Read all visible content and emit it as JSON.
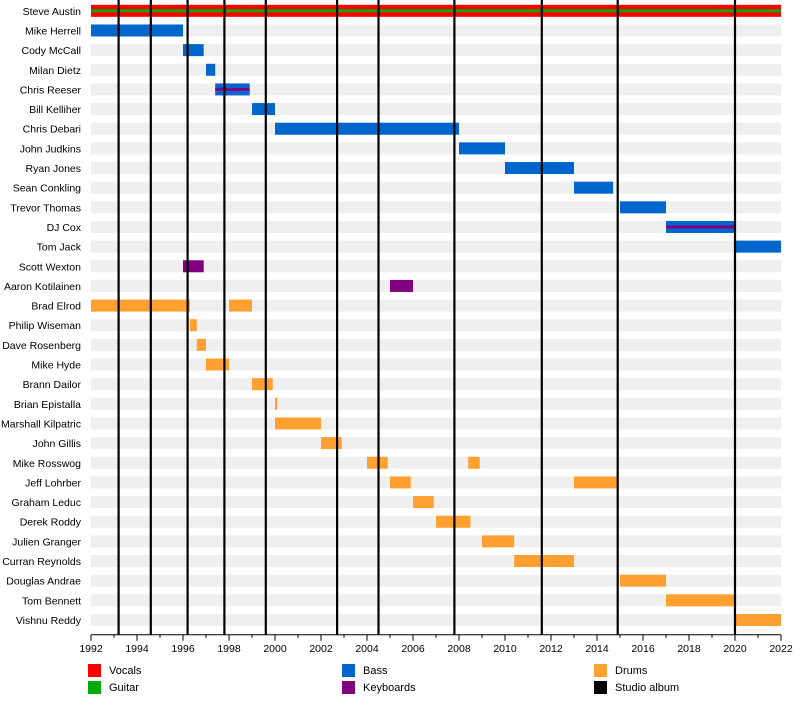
{
  "chart_data": {
    "type": "timeline",
    "x_range": [
      1992,
      2022
    ],
    "x_ticks": [
      1992,
      1994,
      1996,
      1998,
      2000,
      2002,
      2004,
      2006,
      2008,
      2010,
      2012,
      2014,
      2016,
      2018,
      2020,
      2022
    ],
    "x_tick_labels": [
      "1992",
      "1994",
      "1996",
      "1998",
      "2000",
      "2002",
      "2004",
      "2006",
      "2008",
      "2010",
      "2012",
      "2014",
      "2016",
      "2018",
      "2020",
      "2022"
    ],
    "studio_albums": [
      1993.2,
      1994.6,
      1996.2,
      1997.8,
      1999.6,
      2002.7,
      2004.5,
      2007.8,
      2011.6,
      2014.9,
      2020.0
    ],
    "colors": {
      "vocals": "#ff0000",
      "guitar": "#00aa00",
      "bass": "#0066cc",
      "keyboards": "#800080",
      "drums": "#ffa030",
      "studio_album": "#000000"
    },
    "members": [
      {
        "name": "Steve Austin",
        "bars": [
          {
            "start": 1992.0,
            "end": 2022.0,
            "role": "vocals",
            "secondary": "guitar"
          }
        ]
      },
      {
        "name": "Mike Herrell",
        "bars": [
          {
            "start": 1992.0,
            "end": 1996.0,
            "role": "bass"
          }
        ]
      },
      {
        "name": "Cody McCall",
        "bars": [
          {
            "start": 1996.0,
            "end": 1996.9,
            "role": "bass"
          }
        ]
      },
      {
        "name": "Milan Dietz",
        "bars": [
          {
            "start": 1997.0,
            "end": 1997.4,
            "role": "bass"
          }
        ]
      },
      {
        "name": "Chris Reeser",
        "bars": [
          {
            "start": 1997.4,
            "end": 1998.9,
            "role": "bass",
            "secondary": "keyboards"
          }
        ]
      },
      {
        "name": "Bill Kelliher",
        "bars": [
          {
            "start": 1999.0,
            "end": 2000.0,
            "role": "bass"
          }
        ]
      },
      {
        "name": "Chris Debari",
        "bars": [
          {
            "start": 2000.0,
            "end": 2008.0,
            "role": "bass"
          }
        ]
      },
      {
        "name": "John Judkins",
        "bars": [
          {
            "start": 2008.0,
            "end": 2010.0,
            "role": "bass"
          }
        ]
      },
      {
        "name": "Ryan Jones",
        "bars": [
          {
            "start": 2010.0,
            "end": 2013.0,
            "role": "bass"
          }
        ]
      },
      {
        "name": "Sean Conkling",
        "bars": [
          {
            "start": 2013.0,
            "end": 2014.7,
            "role": "bass"
          }
        ]
      },
      {
        "name": "Trevor Thomas",
        "bars": [
          {
            "start": 2015.0,
            "end": 2017.0,
            "role": "bass"
          }
        ]
      },
      {
        "name": "DJ Cox",
        "bars": [
          {
            "start": 2017.0,
            "end": 2020.0,
            "role": "bass",
            "secondary": "keyboards"
          }
        ]
      },
      {
        "name": "Tom Jack",
        "bars": [
          {
            "start": 2020.0,
            "end": 2022.0,
            "role": "bass"
          }
        ]
      },
      {
        "name": "Scott Wexton",
        "bars": [
          {
            "start": 1996.0,
            "end": 1996.9,
            "role": "keyboards"
          }
        ]
      },
      {
        "name": "Aaron Kotilainen",
        "bars": [
          {
            "start": 2005.0,
            "end": 2006.0,
            "role": "keyboards"
          }
        ]
      },
      {
        "name": "Brad Elrod",
        "bars": [
          {
            "start": 1992.0,
            "end": 1996.3,
            "role": "drums"
          },
          {
            "start": 1998.0,
            "end": 1999.0,
            "role": "drums"
          }
        ]
      },
      {
        "name": "Philip Wiseman",
        "bars": [
          {
            "start": 1996.3,
            "end": 1996.6,
            "role": "drums"
          }
        ]
      },
      {
        "name": "Dave Rosenberg",
        "bars": [
          {
            "start": 1996.6,
            "end": 1997.0,
            "role": "drums"
          }
        ]
      },
      {
        "name": "Mike Hyde",
        "bars": [
          {
            "start": 1997.0,
            "end": 1998.0,
            "role": "drums"
          }
        ]
      },
      {
        "name": "Brann Dailor",
        "bars": [
          {
            "start": 1999.0,
            "end": 1999.9,
            "role": "drums"
          }
        ]
      },
      {
        "name": "Brian Epistalla",
        "bars": [
          {
            "start": 2000.0,
            "end": 2000.1,
            "role": "drums"
          }
        ]
      },
      {
        "name": "Marshall Kilpatric",
        "bars": [
          {
            "start": 2000.0,
            "end": 2002.0,
            "role": "drums"
          }
        ]
      },
      {
        "name": "John Gillis",
        "bars": [
          {
            "start": 2002.0,
            "end": 2002.9,
            "role": "drums"
          }
        ]
      },
      {
        "name": "Mike Rosswog",
        "bars": [
          {
            "start": 2004.0,
            "end": 2004.9,
            "role": "drums"
          },
          {
            "start": 2008.4,
            "end": 2008.9,
            "role": "drums"
          }
        ]
      },
      {
        "name": "Jeff Lohrber",
        "bars": [
          {
            "start": 2005.0,
            "end": 2005.9,
            "role": "drums"
          },
          {
            "start": 2013.0,
            "end": 2014.9,
            "role": "drums"
          }
        ]
      },
      {
        "name": "Graham Leduc",
        "bars": [
          {
            "start": 2006.0,
            "end": 2006.9,
            "role": "drums"
          }
        ]
      },
      {
        "name": "Derek Roddy",
        "bars": [
          {
            "start": 2007.0,
            "end": 2008.5,
            "role": "drums"
          }
        ]
      },
      {
        "name": "Julien Granger",
        "bars": [
          {
            "start": 2009.0,
            "end": 2010.4,
            "role": "drums"
          }
        ]
      },
      {
        "name": "Curran Reynolds",
        "bars": [
          {
            "start": 2010.4,
            "end": 2013.0,
            "role": "drums"
          }
        ]
      },
      {
        "name": "Douglas Andrae",
        "bars": [
          {
            "start": 2015.0,
            "end": 2017.0,
            "role": "drums"
          }
        ]
      },
      {
        "name": "Tom Bennett",
        "bars": [
          {
            "start": 2017.0,
            "end": 2020.0,
            "role": "drums"
          }
        ]
      },
      {
        "name": "Vishnu Reddy",
        "bars": [
          {
            "start": 2020.0,
            "end": 2022.0,
            "role": "drums"
          }
        ]
      }
    ],
    "legend": [
      {
        "label": "Vocals",
        "role": "vocals",
        "color": "#ff0000"
      },
      {
        "label": "Guitar",
        "role": "guitar",
        "color": "#00aa00"
      },
      {
        "label": "Bass",
        "role": "bass",
        "color": "#0066cc"
      },
      {
        "label": "Keyboards",
        "role": "keyboards",
        "color": "#800080"
      },
      {
        "label": "Drums",
        "role": "drums",
        "color": "#ffa030"
      },
      {
        "label": "Studio album",
        "role": "studio_album",
        "color": "#000000"
      }
    ]
  }
}
